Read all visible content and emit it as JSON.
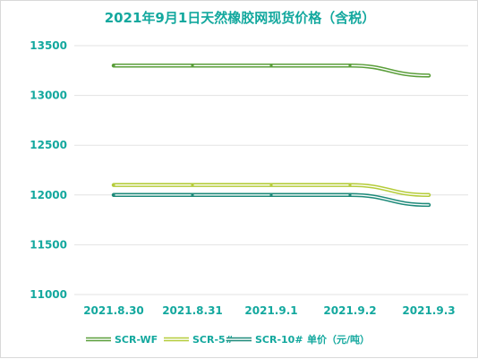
{
  "chart_data": {
    "type": "line",
    "title": "2021年9月1日天然橡胶网现货价格（含税）",
    "categories": [
      "2021.8.30",
      "2021.8.31",
      "2021.9.1",
      "2021.9.2",
      "2021.9.3"
    ],
    "ylim": [
      11000,
      13500
    ],
    "yticks": [
      11000,
      11500,
      12000,
      12500,
      13000,
      13500
    ],
    "grid": true,
    "legend_position": "bottom",
    "unit_label": "单价（元/吨）",
    "series": [
      {
        "name": "SCR-WF",
        "values": [
          13300,
          13300,
          13300,
          13300,
          13200
        ],
        "color": "#5a9e3a",
        "inner": "#ffffff"
      },
      {
        "name": "SCR-5#",
        "values": [
          12100,
          12100,
          12100,
          12100,
          12000
        ],
        "color": "#b5cc3a",
        "inner": "#ffffff"
      },
      {
        "name": "SCR-10#",
        "values": [
          12000,
          12000,
          12000,
          12000,
          11900
        ],
        "color": "#1e8a7a",
        "inner": "#ffffff"
      }
    ]
  }
}
